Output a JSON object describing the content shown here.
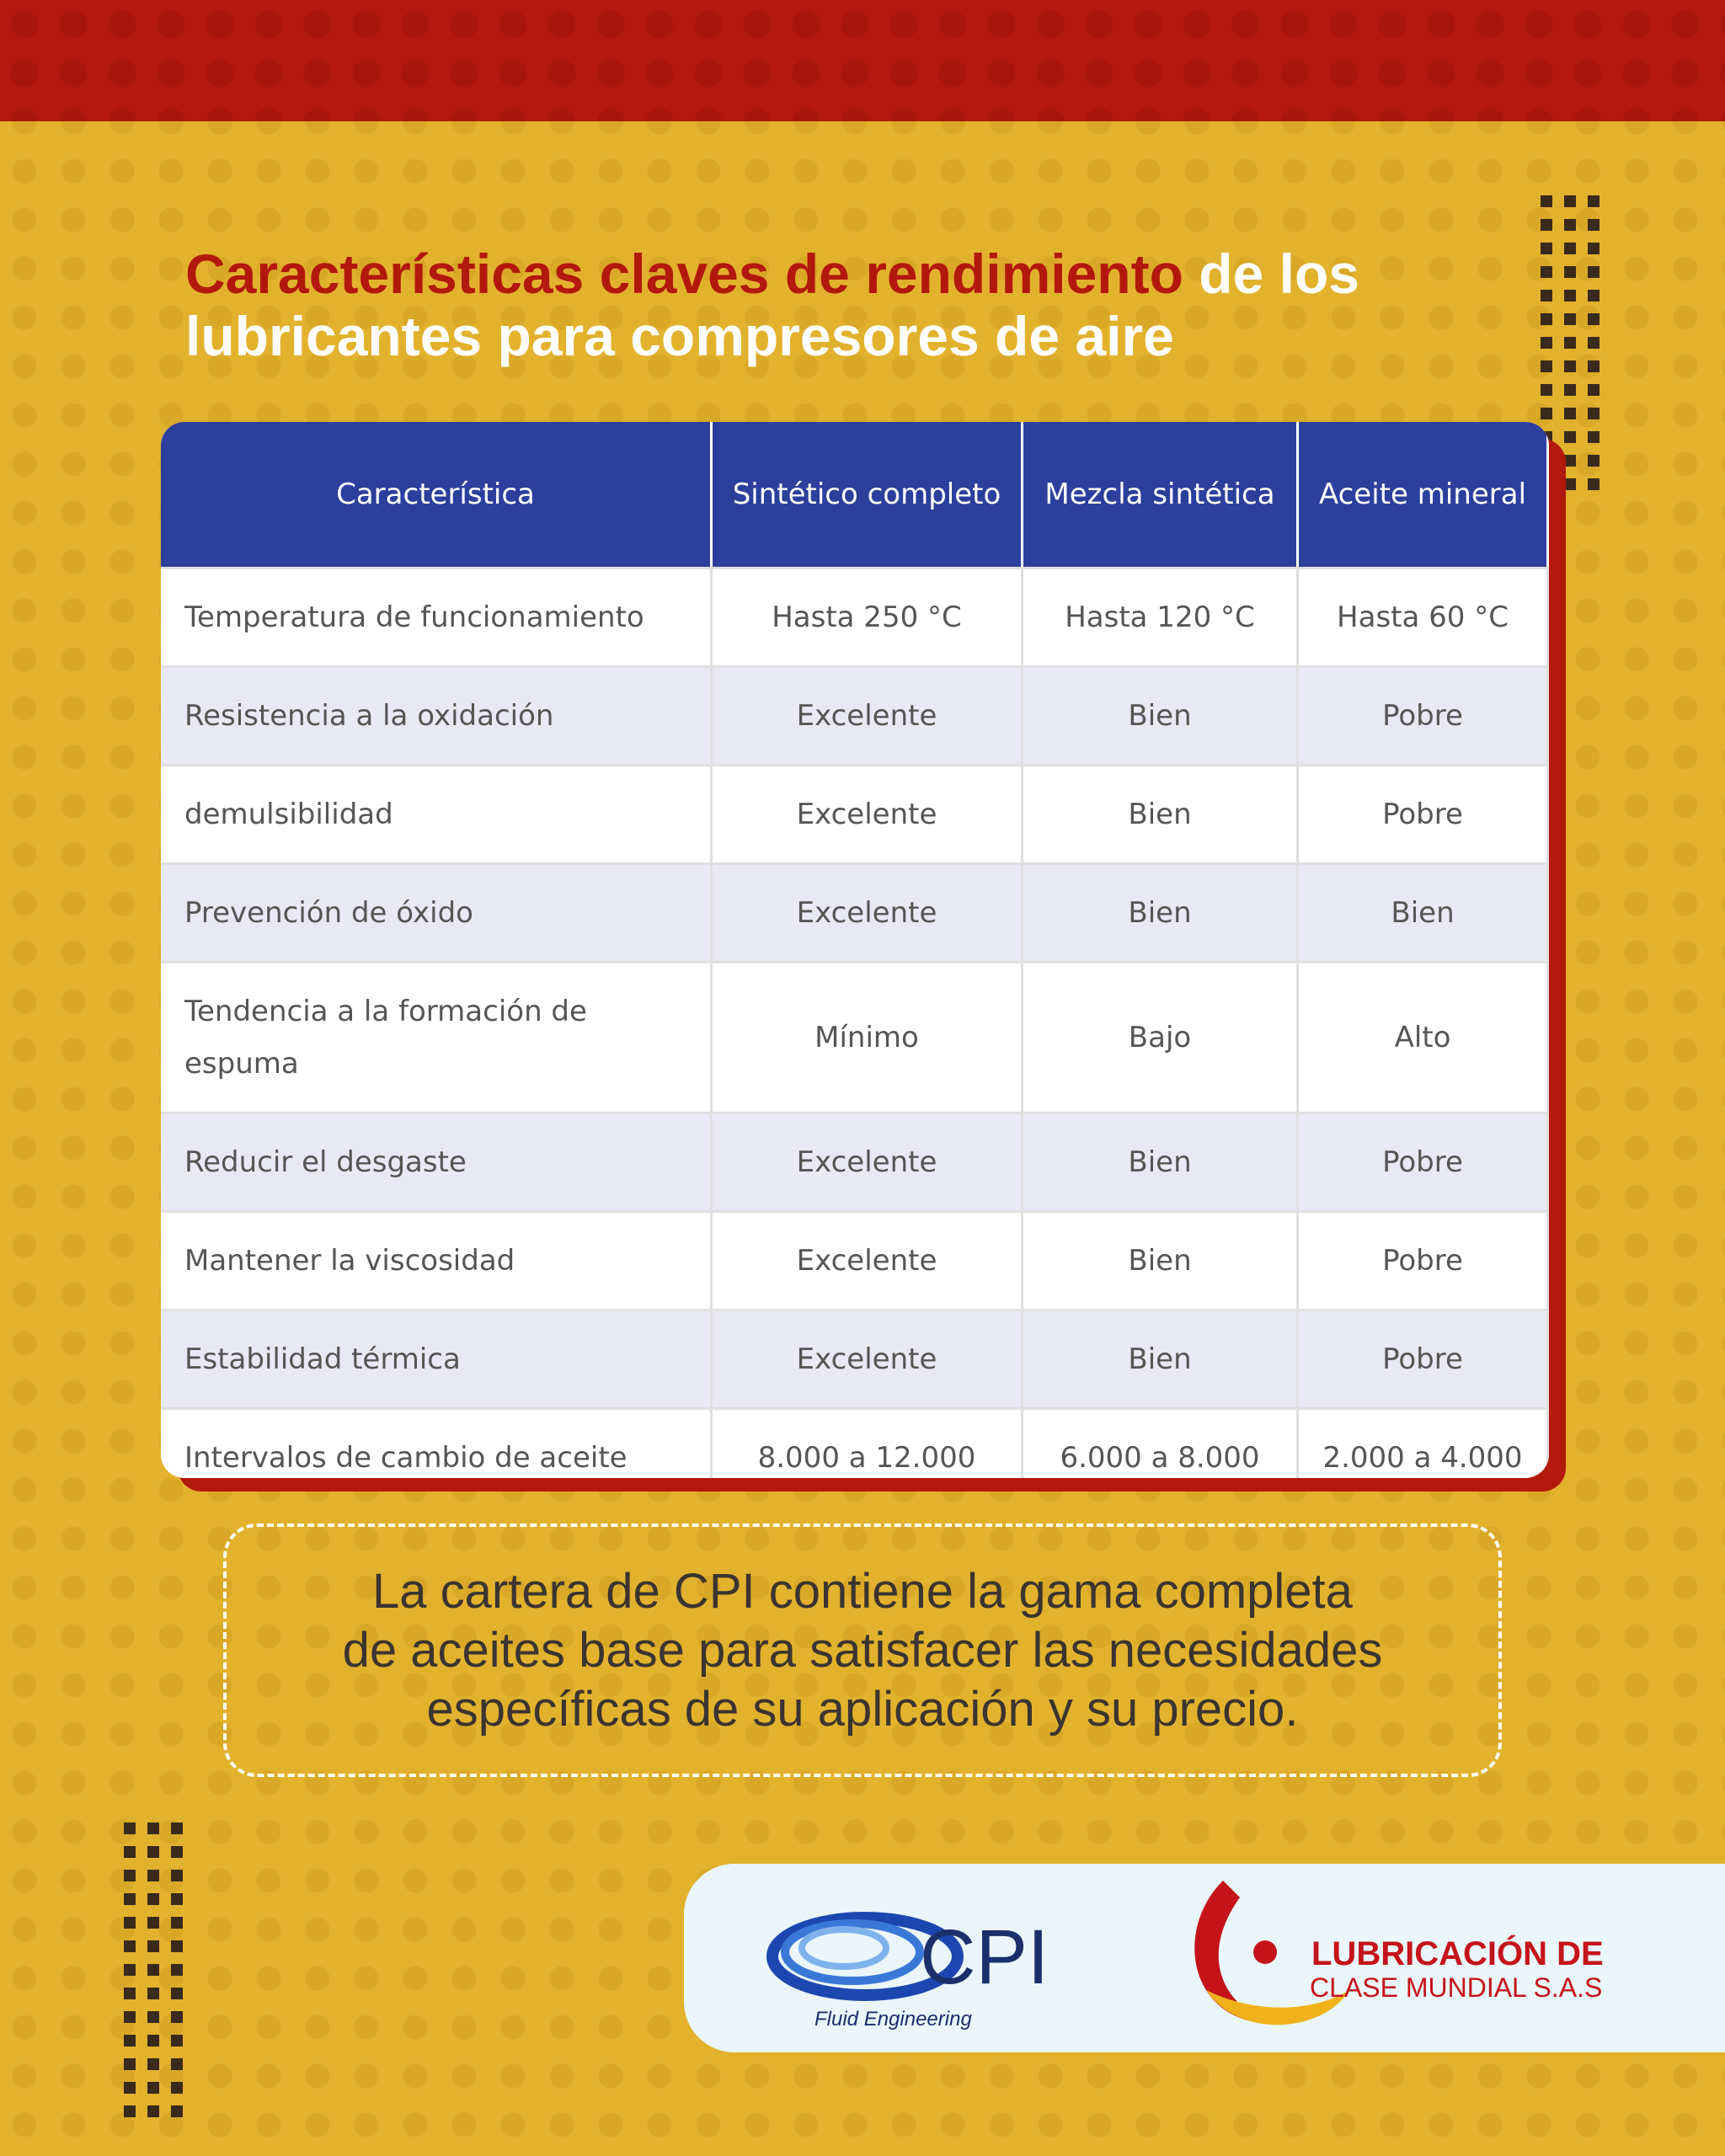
{
  "header": {
    "title_highlight": "Características claves de rendimiento",
    "title_rest": "de los lubricantes para compresores de aire"
  },
  "table": {
    "columns": [
      "Característica",
      "Sintético completo",
      "Mezcla sintética",
      "Aceite mineral"
    ],
    "rows": [
      [
        "Temperatura de funcionamiento",
        "Hasta 250 °C",
        "Hasta 120 °C",
        "Hasta 60 °C"
      ],
      [
        "Resistencia a la oxidación",
        "Excelente",
        "Bien",
        "Pobre"
      ],
      [
        "demulsibilidad",
        "Excelente",
        "Bien",
        "Pobre"
      ],
      [
        "Prevención de óxido",
        "Excelente",
        "Bien",
        "Bien"
      ],
      [
        "Tendencia a la formación de espuma",
        "Mínimo",
        "Bajo",
        "Alto"
      ],
      [
        "Reducir el desgaste",
        "Excelente",
        "Bien",
        "Pobre"
      ],
      [
        "Mantener la viscosidad",
        "Excelente",
        "Bien",
        "Pobre"
      ],
      [
        "Estabilidad térmica",
        "Excelente",
        "Bien",
        "Pobre"
      ],
      [
        "Intervalos de cambio de aceite",
        "8.000 a 12.000",
        "6.000 a 8.000",
        "2.000 a 4.000"
      ]
    ]
  },
  "note": [
    "La cartera de CPI contiene la gama completa",
    "de aceites base para satisfacer las necesidades",
    "específicas de su aplicación y su precio."
  ],
  "logos": {
    "cpi": "CPI",
    "cpi_tagline": "Fluid Engineering",
    "lcm_line1": "LUBRICACIÓN DE",
    "lcm_line2": "CLASE MUNDIAL S.A.S"
  }
}
